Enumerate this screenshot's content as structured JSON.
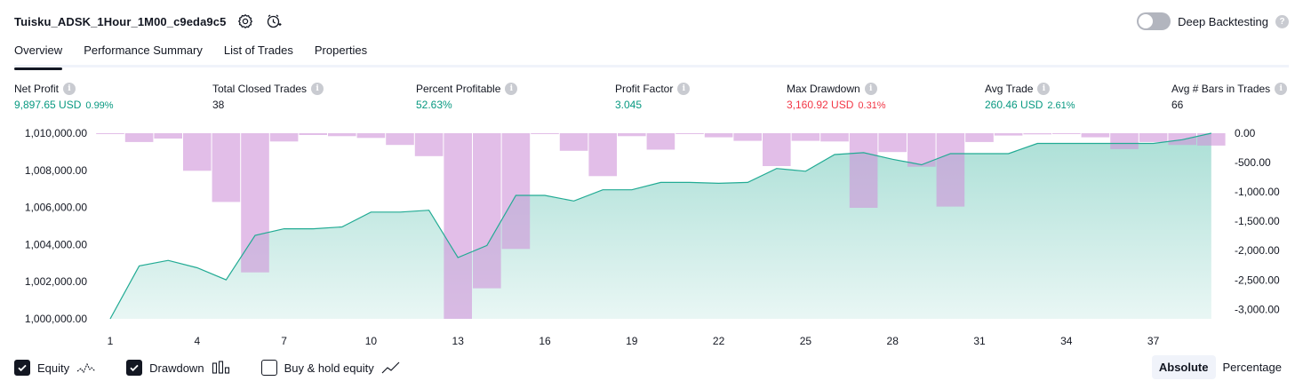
{
  "header": {
    "strategy_title": "Tuisku_ADSK_1Hour_1M00_c9eda9c5",
    "deep_backtesting_label": "Deep Backtesting",
    "help_glyph": "?",
    "icons": [
      "settings-icon",
      "alert-clock-icon",
      "help-icon"
    ]
  },
  "tabs": [
    {
      "label": "Overview",
      "active": true
    },
    {
      "label": "Performance Summary",
      "active": false
    },
    {
      "label": "List of Trades",
      "active": false
    },
    {
      "label": "Properties",
      "active": false
    }
  ],
  "metrics": [
    {
      "label": "Net Profit",
      "value": "9,897.65 USD",
      "pct": "0.99%",
      "color": "green"
    },
    {
      "label": "Total Closed Trades",
      "value": "38",
      "pct": "",
      "color": "dark"
    },
    {
      "label": "Percent Profitable",
      "value": "52.63%",
      "pct": "",
      "color": "green"
    },
    {
      "label": "Profit Factor",
      "value": "3.045",
      "pct": "",
      "color": "green"
    },
    {
      "label": "Max Drawdown",
      "value": "3,160.92 USD",
      "pct": "0.31%",
      "color": "red"
    },
    {
      "label": "Avg Trade",
      "value": "260.46 USD",
      "pct": "2.61%",
      "color": "green"
    },
    {
      "label": "Avg # Bars in Trades",
      "value": "66",
      "pct": "",
      "color": "dark"
    }
  ],
  "info_glyph": "i",
  "chart_data": {
    "type": "line",
    "x_ticks": [
      "1",
      "4",
      "7",
      "10",
      "13",
      "16",
      "19",
      "22",
      "25",
      "28",
      "31",
      "34",
      "37"
    ],
    "left_y_ticks": [
      "1,010,000.00",
      "1,008,000.00",
      "1,006,000.00",
      "1,004,000.00",
      "1,002,000.00",
      "1,000,000.00"
    ],
    "right_y_ticks": [
      "0.00",
      "-500.00",
      "-1,000.00",
      "-1,500.00",
      "-2,000.00",
      "-2,500.00",
      "-3,000.00"
    ],
    "left_ylim": [
      1000000,
      1010000
    ],
    "right_ylim": [
      -3160.92,
      0
    ],
    "series": [
      {
        "name": "Equity",
        "kind": "area-line",
        "color": "#22ab94",
        "x": [
          1,
          2,
          3,
          4,
          5,
          6,
          7,
          8,
          9,
          10,
          11,
          12,
          13,
          14,
          15,
          16,
          17,
          18,
          19,
          20,
          21,
          22,
          23,
          24,
          25,
          26,
          27,
          28,
          29,
          30,
          31,
          32,
          33,
          34,
          35,
          36,
          37,
          38,
          39
        ],
        "values": [
          1000000,
          1002850,
          1003150,
          1002750,
          1002100,
          1004500,
          1004850,
          1004850,
          1004950,
          1005750,
          1005750,
          1005850,
          1003300,
          1003950,
          1006650,
          1006650,
          1006350,
          1006950,
          1006950,
          1007350,
          1007350,
          1007300,
          1007350,
          1008100,
          1007950,
          1008850,
          1008950,
          1008600,
          1008300,
          1008900,
          1008900,
          1008900,
          1009450,
          1009450,
          1009450,
          1009450,
          1009450,
          1009650,
          1010000
        ]
      },
      {
        "name": "Drawdown",
        "kind": "bar",
        "color": "#ce93d8",
        "x": [
          1,
          2,
          3,
          4,
          5,
          6,
          7,
          8,
          9,
          10,
          11,
          12,
          13,
          14,
          15,
          16,
          17,
          18,
          19,
          20,
          21,
          22,
          23,
          24,
          25,
          26,
          27,
          28,
          29,
          30,
          31,
          32,
          33,
          34,
          35,
          36,
          37,
          38,
          39
        ],
        "values": [
          -5,
          -150,
          -90,
          -640,
          -1170,
          -2370,
          -140,
          -30,
          -50,
          -80,
          -200,
          -390,
          -3160.92,
          -2640,
          -1970,
          0,
          -300,
          -730,
          -50,
          -280,
          0,
          -70,
          -130,
          -560,
          -130,
          -140,
          -1270,
          -320,
          -570,
          -1250,
          -150,
          -40,
          -20,
          -10,
          -70,
          -270,
          -150,
          -200,
          -210
        ]
      }
    ]
  },
  "legend": {
    "equity": {
      "label": "Equity",
      "checked": true
    },
    "drawdown": {
      "label": "Drawdown",
      "checked": true
    },
    "buy_hold": {
      "label": "Buy & hold equity",
      "checked": false
    }
  },
  "mode": {
    "absolute_label": "Absolute",
    "percentage_label": "Percentage",
    "selected": "Absolute"
  }
}
